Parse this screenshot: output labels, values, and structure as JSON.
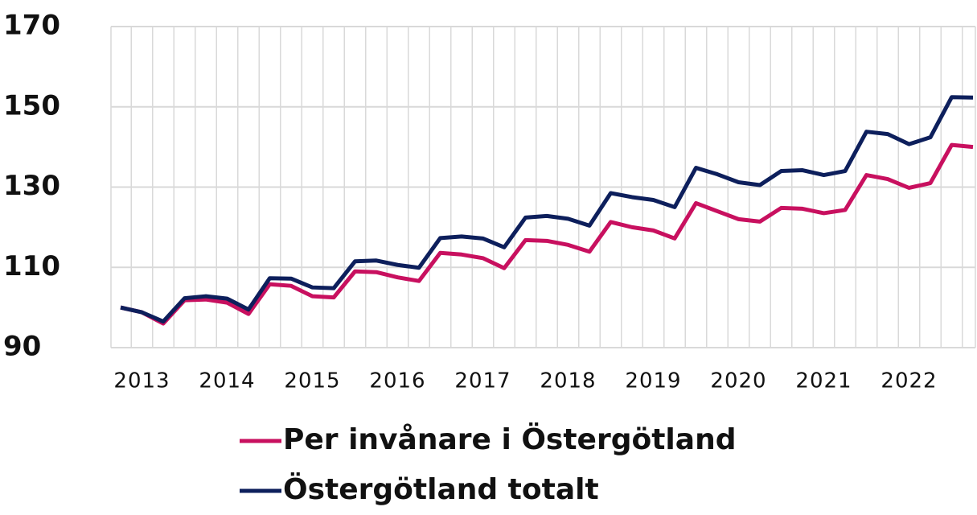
{
  "chart_data": {
    "type": "line",
    "categories": [
      null,
      "2013",
      null,
      null,
      null,
      "2014",
      null,
      null,
      null,
      "2015",
      null,
      null,
      null,
      "2016",
      null,
      null,
      null,
      "2017",
      null,
      null,
      null,
      "2018",
      null,
      null,
      null,
      "2019",
      null,
      null,
      null,
      "2020",
      null,
      null,
      null,
      "2021",
      null,
      null,
      null,
      "2022",
      null,
      null,
      null
    ],
    "series": [
      {
        "name": "Per invånare i Östergötland",
        "color": "#c8105f",
        "values": [
          100,
          98.8,
          96,
          101.8,
          102,
          101.2,
          98.4,
          105.8,
          105.4,
          102.8,
          102.5,
          109,
          108.8,
          107.5,
          106.6,
          113.6,
          113.2,
          112.3,
          109.8,
          116.8,
          116.6,
          115.6,
          113.9,
          121.3,
          120,
          119.2,
          117.2,
          126,
          124,
          122,
          121.4,
          124.8,
          124.6,
          123.5,
          124.3,
          133,
          132,
          129.8,
          131,
          140.5,
          140
        ]
      },
      {
        "name": "Östergötland totalt",
        "color": "#0d1f5c",
        "values": [
          100,
          98.8,
          96.5,
          102.3,
          102.8,
          102.2,
          99.5,
          107.3,
          107.2,
          105,
          104.8,
          111.5,
          111.7,
          110.6,
          109.9,
          117.3,
          117.7,
          117.2,
          115,
          122.4,
          122.8,
          122.1,
          120.4,
          128.5,
          127.5,
          126.8,
          125,
          134.8,
          133.2,
          131.2,
          130.5,
          134,
          134.2,
          133,
          134,
          143.8,
          143.2,
          140.7,
          142.4,
          152.4,
          152.3
        ]
      }
    ],
    "ylim": [
      90,
      170
    ],
    "yticks": [
      90,
      110,
      130,
      150,
      170
    ],
    "grid": true
  }
}
